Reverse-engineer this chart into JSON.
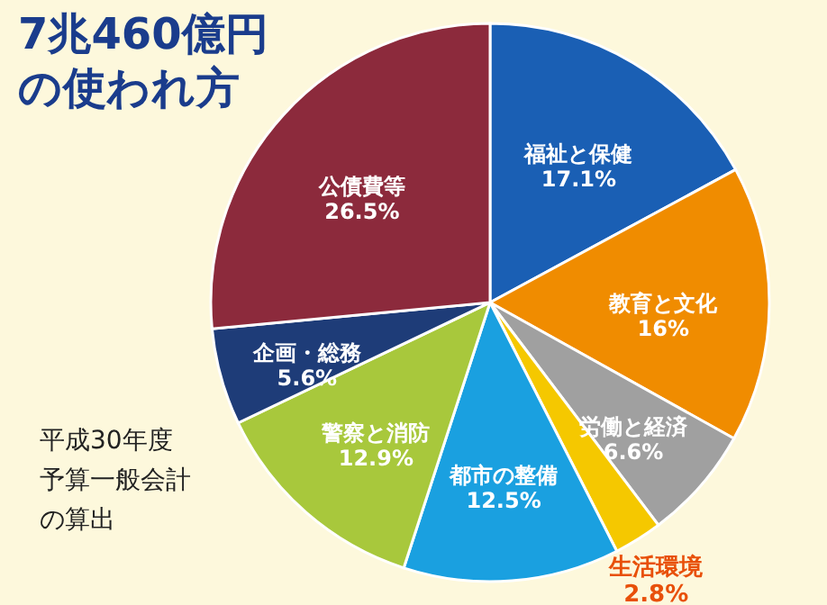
{
  "chart_data": {
    "type": "pie",
    "title": "7兆460億円の使われ方",
    "annotations": [
      "平成30年度予算一般会計の算出"
    ],
    "value_labels": [
      "17.1%",
      "16%",
      "6.6%",
      "2.8%",
      "12.5%",
      "12.9%",
      "5.6%",
      "26.5%"
    ],
    "categories": [
      "福祉と保健",
      "教育と文化",
      "労働と経済",
      "生活環境",
      "都市の整備",
      "警察と消防",
      "企画・総務",
      "公債費等"
    ],
    "values": [
      17.1,
      16,
      6.6,
      2.8,
      12.5,
      12.9,
      5.6,
      26.5
    ],
    "colors": [
      "#1a5fb4",
      "#f08c00",
      "#a0a0a0",
      "#f5c800",
      "#1aa0e0",
      "#a8c83c",
      "#1e3c78",
      "#8c2a3c"
    ]
  }
}
